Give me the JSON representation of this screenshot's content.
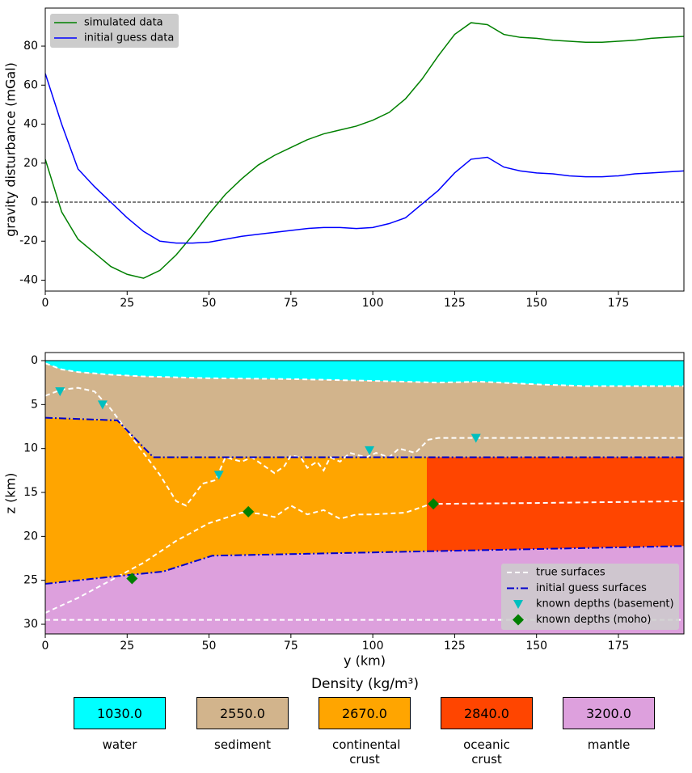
{
  "chart_data": [
    {
      "type": "line",
      "y_label": "gravity disturbance (mGal)",
      "x": [
        0,
        5,
        10,
        15,
        20,
        25,
        30,
        35,
        40,
        45,
        50,
        55,
        60,
        65,
        70,
        75,
        80,
        85,
        90,
        95,
        100,
        105,
        110,
        115,
        120,
        125,
        130,
        135,
        140,
        145,
        150,
        155,
        160,
        165,
        170,
        175,
        180,
        185,
        190,
        195
      ],
      "series": [
        {
          "name": "simulated data",
          "color": "#008000",
          "values": [
            22,
            -5,
            -19,
            -26,
            -33,
            -37,
            -39,
            -35,
            -27,
            -17,
            -6,
            4,
            12,
            19,
            24,
            28,
            32,
            35,
            37,
            39,
            42,
            46,
            53,
            63,
            75,
            86,
            92,
            91,
            86,
            84.5,
            84,
            83,
            82.5,
            82,
            82,
            82.5,
            83,
            84,
            84.5,
            85
          ]
        },
        {
          "name": "initial guess data",
          "color": "#0000ff",
          "values": [
            66,
            40,
            17,
            8,
            0,
            -8,
            -15,
            -20,
            -21,
            -21,
            -20.5,
            -19,
            -17.5,
            -16.5,
            -15.5,
            -14.5,
            -13.5,
            -13,
            -13,
            -13.5,
            -13,
            -11,
            -8,
            -1,
            6,
            15,
            22,
            23,
            18,
            16,
            15,
            14.5,
            13.5,
            13,
            13,
            13.5,
            14.5,
            15,
            15.5,
            16
          ]
        }
      ],
      "reference_line": 0,
      "xlim": [
        0,
        195
      ],
      "xticks": [
        0,
        25,
        50,
        75,
        100,
        125,
        150,
        175
      ],
      "ylim": [
        -45.6,
        99.5
      ],
      "yticks": [
        -40,
        -20,
        0,
        20,
        40,
        60,
        80
      ],
      "legend": "upper-left"
    },
    {
      "type": "section",
      "x_label": "y (km)",
      "y_label": "z (km)",
      "y_inverted": true,
      "reference_line": 0,
      "xlim": [
        0,
        195
      ],
      "xticks": [
        0,
        25,
        50,
        75,
        100,
        125,
        150,
        175
      ],
      "ylim": [
        -0.92,
        31.1
      ],
      "yticks": [
        0,
        5,
        10,
        15,
        20,
        25,
        30
      ],
      "crust_boundary_x": 116.5,
      "series": [
        {
          "name": "true surfaces",
          "color": "#ffffff",
          "lines": [
            {
              "x": [
                0,
                5,
                10,
                20,
                30,
                50,
                75,
                100,
                120,
                133,
                150,
                165,
                195
              ],
              "values": [
                0.3,
                1,
                1.3,
                1.6,
                1.8,
                2,
                2.1,
                2.3,
                2.5,
                2.4,
                2.7,
                2.9,
                2.9
              ]
            },
            {
              "x": [
                0,
                5,
                10,
                15,
                20,
                25,
                30,
                35,
                40,
                43,
                45,
                48,
                52,
                55,
                60,
                63,
                65,
                70,
                73,
                75,
                78,
                80,
                83,
                85,
                87,
                90,
                93,
                98,
                101,
                105,
                108,
                113,
                117,
                120,
                195
              ],
              "values": [
                4,
                3.3,
                3.1,
                3.5,
                5.5,
                8,
                10.5,
                13,
                16,
                16.5,
                15.5,
                14,
                13.6,
                11,
                11.5,
                11,
                11.5,
                12.8,
                12,
                10.8,
                11,
                12.2,
                11.5,
                12.5,
                11,
                11.5,
                10.5,
                11,
                10.5,
                11,
                10,
                10.5,
                9,
                8.8,
                8.8
              ]
            },
            {
              "x": [
                0,
                10,
                20,
                30,
                40,
                50,
                60,
                65,
                70,
                75,
                80,
                85,
                90,
                95,
                100,
                110,
                117,
                120,
                150,
                195
              ],
              "values": [
                28.7,
                27,
                25,
                23,
                20.5,
                18.5,
                17.3,
                17.4,
                17.8,
                16.5,
                17.5,
                17,
                18,
                17.5,
                17.5,
                17.3,
                16.4,
                16.3,
                16.2,
                16
              ]
            },
            {
              "x": [
                0,
                195
              ],
              "values": [
                29.5,
                29.5
              ]
            }
          ]
        },
        {
          "name": "initial guess surfaces",
          "color": "#0000cd",
          "lines": [
            {
              "x": [
                0,
                22,
                33,
                195
              ],
              "values": [
                6.5,
                6.8,
                11,
                11
              ]
            },
            {
              "x": [
                0,
                20,
                36,
                51,
                116,
                195
              ],
              "values": [
                25.4,
                24.6,
                24,
                22.2,
                21.7,
                21.1
              ]
            }
          ]
        },
        {
          "name": "known depths (basement)",
          "color": "#00bfbf",
          "marker": "triangle",
          "x": [
            4.5,
            17.5,
            53,
            99,
            131.5
          ],
          "values": [
            3.5,
            5,
            13,
            10.2,
            8.8
          ]
        },
        {
          "name": "known depths (moho)",
          "color": "#007f00",
          "marker": "diamond",
          "x": [
            26.5,
            62,
            118.5
          ],
          "values": [
            24.8,
            17.2,
            16.3
          ]
        }
      ],
      "legend": "lower-right",
      "layers": {
        "title": "Density (kg/m³)",
        "names": [
          "water",
          "sediment",
          "continental crust",
          "oceanic crust",
          "mantle"
        ],
        "values": [
          1030,
          2550,
          2670,
          2840,
          3200
        ],
        "value_labels": [
          "1030.0",
          "2550.0",
          "2670.0",
          "2840.0",
          "3200.0"
        ],
        "colors": [
          "#00ffff",
          "#d2b48c",
          "#ffa500",
          "#ff4500",
          "#dda0dd"
        ]
      }
    }
  ]
}
